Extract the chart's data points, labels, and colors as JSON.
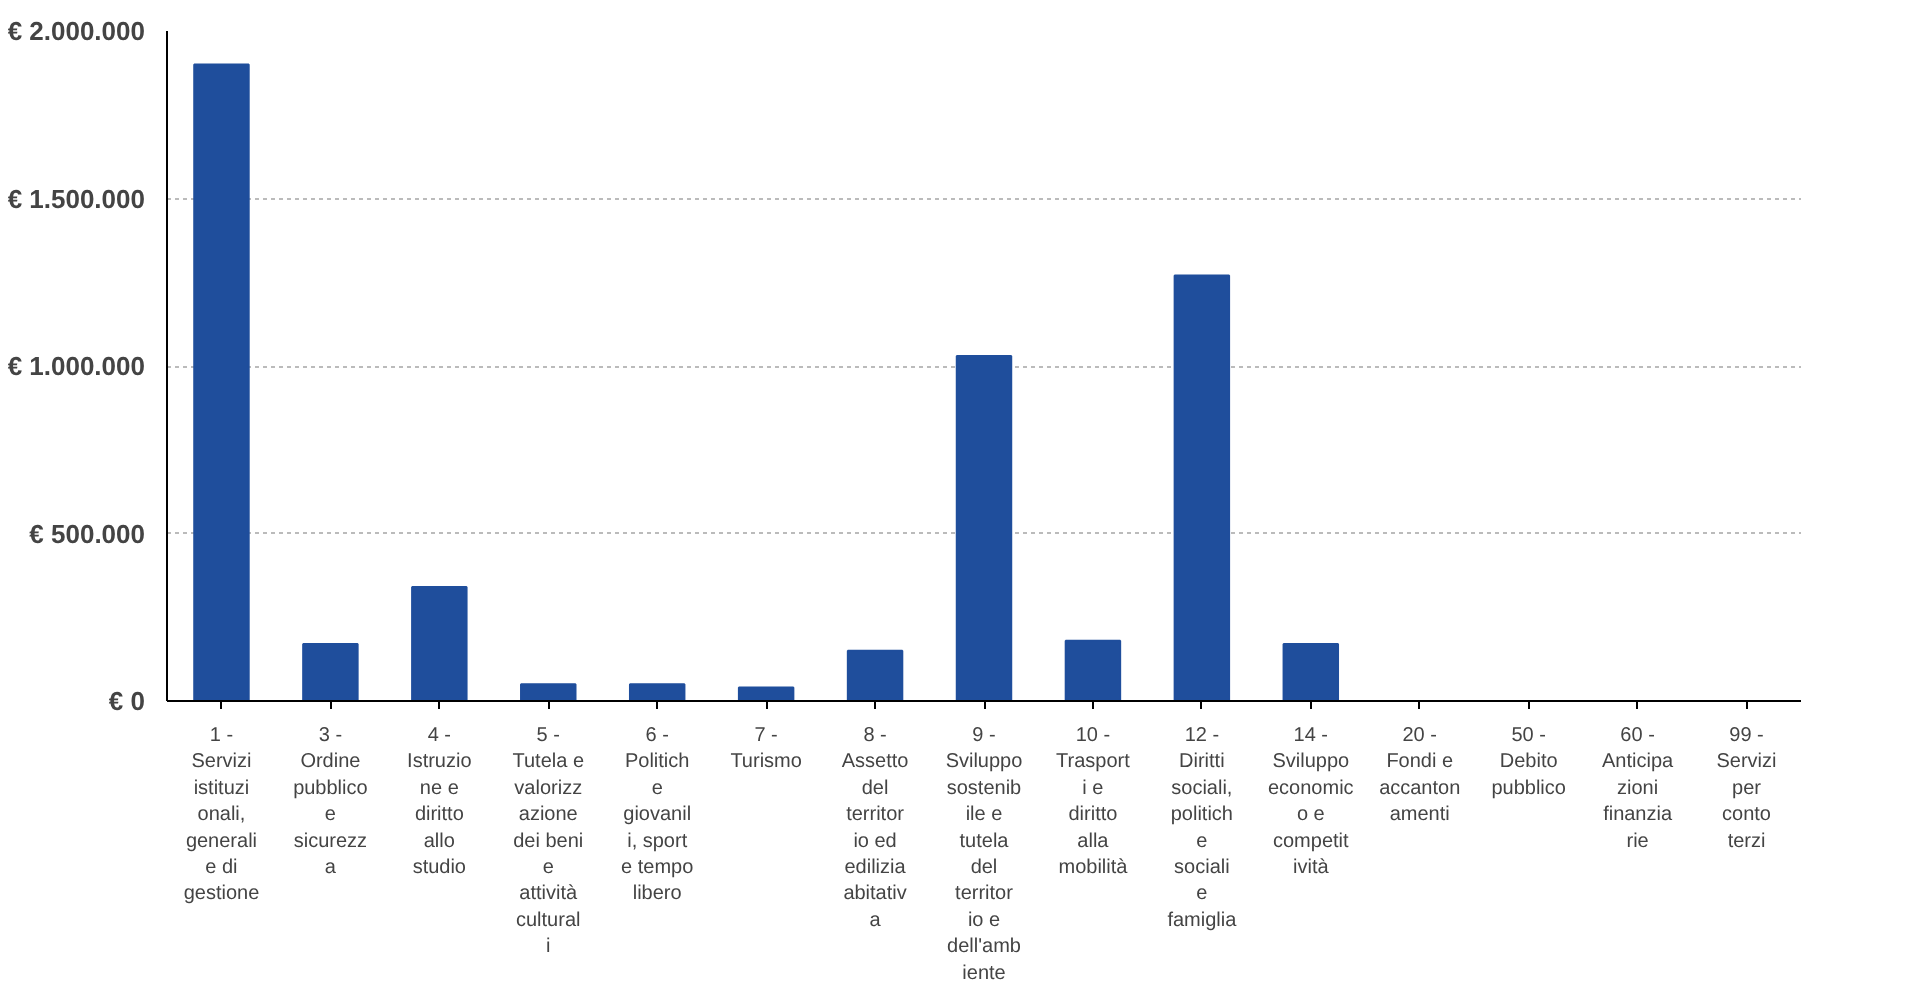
{
  "chart_data": {
    "type": "bar",
    "categories": [
      "1 - Servizi istituzionali, generali e di gestione",
      "3 - Ordine pubblico e sicurezza",
      "4 - Istruzione e diritto allo studio",
      "5 - Tutela e valorizzazione dei beni e attività culturali",
      "6 - Politiche giovanili, sport e tempo libero",
      "7 - Turismo",
      "8 - Assetto del territorio ed edilizia abitativa",
      "9 - Sviluppo sostenibile e tutela del territorio e dell'ambiente",
      "10 - Trasporti e diritto alla mobilità",
      "12 - Diritti sociali, politiche sociali e famiglia",
      "14 - Sviluppo economico e competitività",
      "20 - Fondi e accantonamenti",
      "50 - Debito pubblico",
      "60 - Anticipazioni finanziarie",
      "99 - Servizi per conto terzi"
    ],
    "values": [
      1900000,
      170000,
      340000,
      50000,
      50000,
      40000,
      150000,
      1030000,
      180000,
      1270000,
      170000,
      0,
      0,
      0,
      0
    ],
    "color": "#1f4e9c",
    "ylim": [
      0,
      2000000
    ],
    "yticks": [
      {
        "value": 0,
        "label": "€ 0"
      },
      {
        "value": 500000,
        "label": "€ 500.000"
      },
      {
        "value": 1000000,
        "label": "€ 1.000.000"
      },
      {
        "value": 1500000,
        "label": "€ 1.500.000"
      },
      {
        "value": 2000000,
        "label": "€ 2.000.000"
      }
    ],
    "grid": "y"
  }
}
